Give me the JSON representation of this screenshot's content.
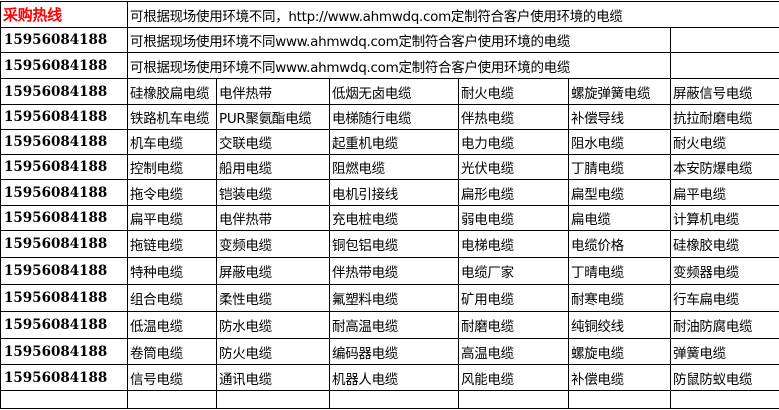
{
  "header": {
    "hotline_label": "采购热线",
    "notice_1": "可根据现场使用环境不同，http://www.ahmwdq.com定制符合客户使用环境的电缆",
    "notice_2": "可根据现场使用环境不同www.ahmwdq.com定制符合客户使用环境的电缆",
    "notice_3": "可根据现场使用环境不同www.ahmwdq.com定制符合客户使用环境的电缆",
    "phone": "15956084188",
    "hotline_color": "#ff0000"
  },
  "rows": [
    {
      "phone": "15956084188",
      "items": [
        "硅橡胶扁电缆",
        "电伴热带",
        "低烟无卤电缆",
        "耐火电缆",
        "螺旋弹簧电缆",
        "屏蔽信号电缆"
      ]
    },
    {
      "phone": "15956084188",
      "items": [
        "铁路机车电缆",
        "PUR聚氨酯电缆",
        "电梯随行电缆",
        "伴热电缆",
        "补偿导线",
        "抗拉耐磨电缆"
      ]
    },
    {
      "phone": "15956084188",
      "items": [
        "机车电缆",
        "交联电缆",
        "起重机电缆",
        "电力电缆",
        "阻水电缆",
        "耐火电缆"
      ]
    },
    {
      "phone": "15956084188",
      "items": [
        "控制电缆",
        "船用电缆",
        "阻燃电缆",
        "光伏电缆",
        "丁腈电缆",
        "本安防爆电缆"
      ]
    },
    {
      "phone": "15956084188",
      "items": [
        "拖令电缆",
        "铠装电缆",
        "电机引接线",
        "扁形电缆",
        "扁型电缆",
        "扁平电缆"
      ]
    },
    {
      "phone": "15956084188",
      "items": [
        "扁平电缆",
        "电伴热带",
        "充电桩电缆",
        "弱电电缆",
        "扁电缆",
        "计算机电缆"
      ]
    },
    {
      "phone": "15956084188",
      "items": [
        "拖链电缆",
        "变频电缆",
        "铜包铝电缆",
        "电梯电缆",
        "电缆价格",
        "硅橡胶电缆"
      ]
    },
    {
      "phone": "15956084188",
      "items": [
        "特种电缆",
        "屏蔽电缆",
        "伴热带电缆",
        "电缆厂家",
        "丁晴电缆",
        "变频器电缆"
      ]
    },
    {
      "phone": "15956084188",
      "items": [
        "组合电缆",
        "柔性电缆",
        "氟塑料电缆",
        "矿用电缆",
        "耐寒电缆",
        "行车扁电缆"
      ]
    },
    {
      "phone": "15956084188",
      "items": [
        "低温电缆",
        "防水电缆",
        "耐高温电缆",
        "耐磨电缆",
        "纯铜绞线",
        "耐油防腐电缆"
      ]
    },
    {
      "phone": "15956084188",
      "items": [
        "卷筒电缆",
        "防火电缆",
        "编码器电缆",
        "高温电缆",
        "螺旋电缆",
        "弹簧电缆"
      ]
    },
    {
      "phone": "15956084188",
      "items": [
        "信号电缆",
        "通讯电缆",
        "机器人电缆",
        "风能电缆",
        "补偿电缆",
        "防鼠防蚁电缆"
      ]
    }
  ]
}
